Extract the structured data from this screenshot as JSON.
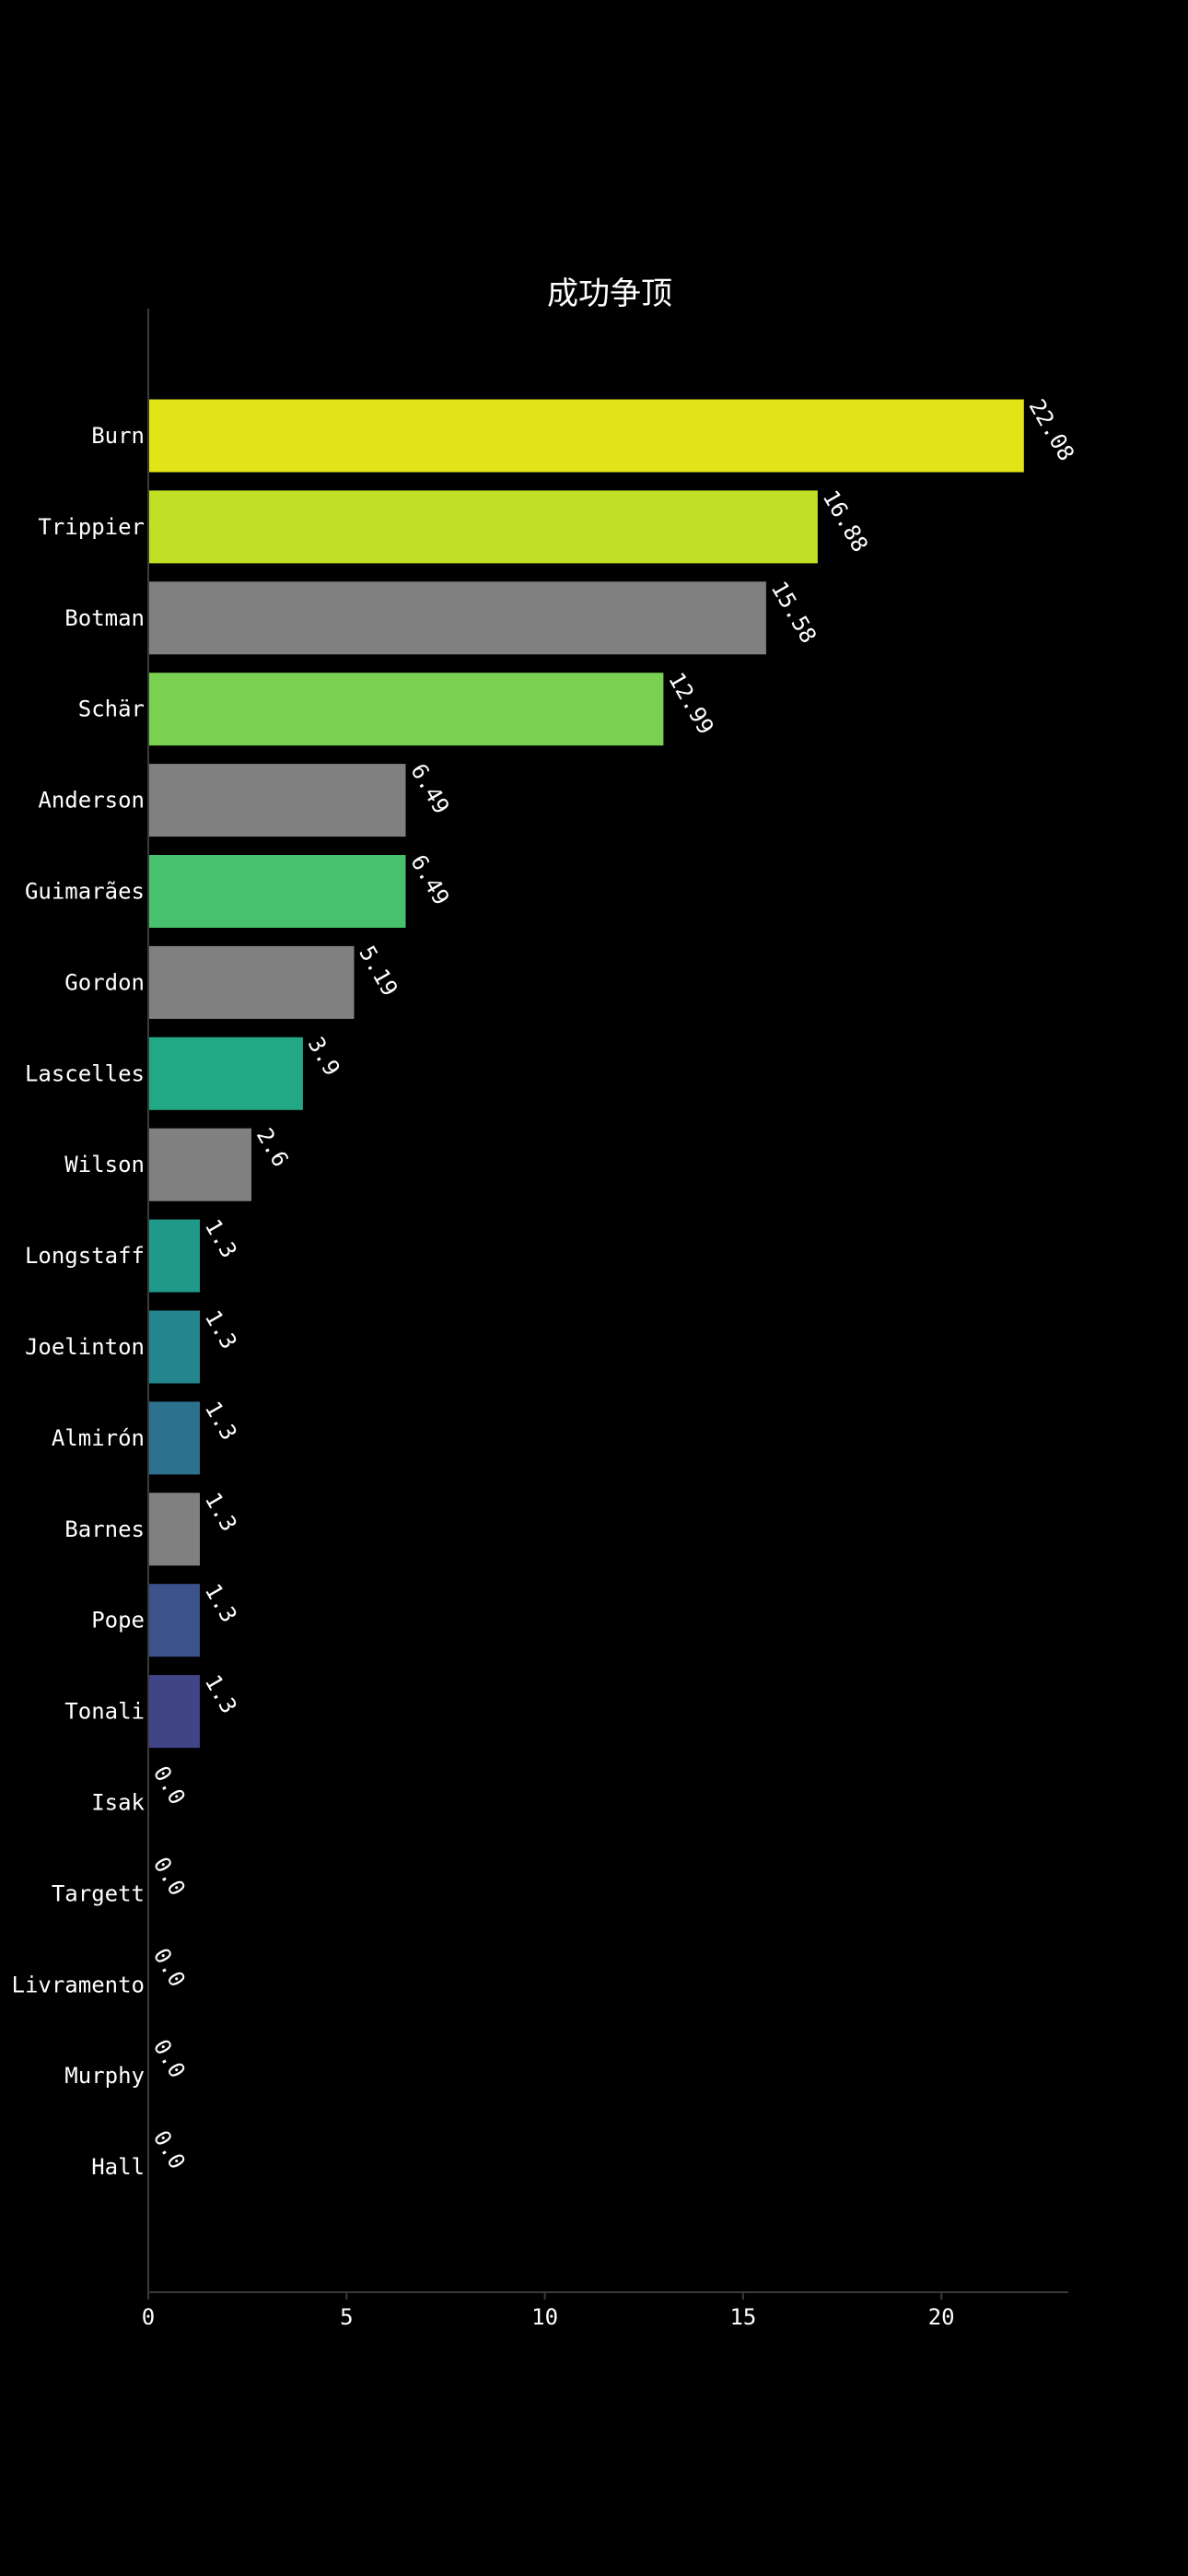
{
  "chart_data": {
    "type": "bar",
    "orientation": "horizontal",
    "title": "成功争顶",
    "xlabel": "",
    "ylabel": "",
    "xlim": [
      0,
      23.2
    ],
    "x_ticks": [
      0,
      5,
      10,
      15,
      20
    ],
    "grid": false,
    "legend": "none",
    "categories": [
      "Burn",
      "Trippier",
      "Botman",
      "Schär",
      "Anderson",
      "Guimarães",
      "Gordon",
      "Lascelles",
      "Wilson",
      "Longstaff",
      "Joelinton",
      "Almirón",
      "Barnes",
      "Pope",
      "Tonali",
      "Isak",
      "Targett",
      "Livramento",
      "Murphy",
      "Hall"
    ],
    "values": [
      22.08,
      16.88,
      15.58,
      12.99,
      6.49,
      6.49,
      5.19,
      3.9,
      2.6,
      1.3,
      1.3,
      1.3,
      1.3,
      1.3,
      1.3,
      0.0,
      0.0,
      0.0,
      0.0,
      0.0
    ],
    "value_labels": [
      "22.08",
      "16.88",
      "15.58",
      "12.99",
      "6.49",
      "6.49",
      "5.19",
      "3.9",
      "2.6",
      "1.3",
      "1.3",
      "1.3",
      "1.3",
      "1.3",
      "1.3",
      "0.0",
      "0.0",
      "0.0",
      "0.0",
      "0.0"
    ],
    "colors": [
      "#e2e418",
      "#c0df25",
      "#808080",
      "#7ad151",
      "#808080",
      "#48c16e",
      "#808080",
      "#22a884",
      "#808080",
      "#1f9a8a",
      "#25858e",
      "#2c728e",
      "#808080",
      "#3b528b",
      "#414487",
      "#46327e",
      "#472d7b",
      "#481a6c",
      "#471164",
      "#440154"
    ]
  },
  "colors": {
    "background": "#000000",
    "text": "#ffffff",
    "axis": "#3a3a3a"
  }
}
